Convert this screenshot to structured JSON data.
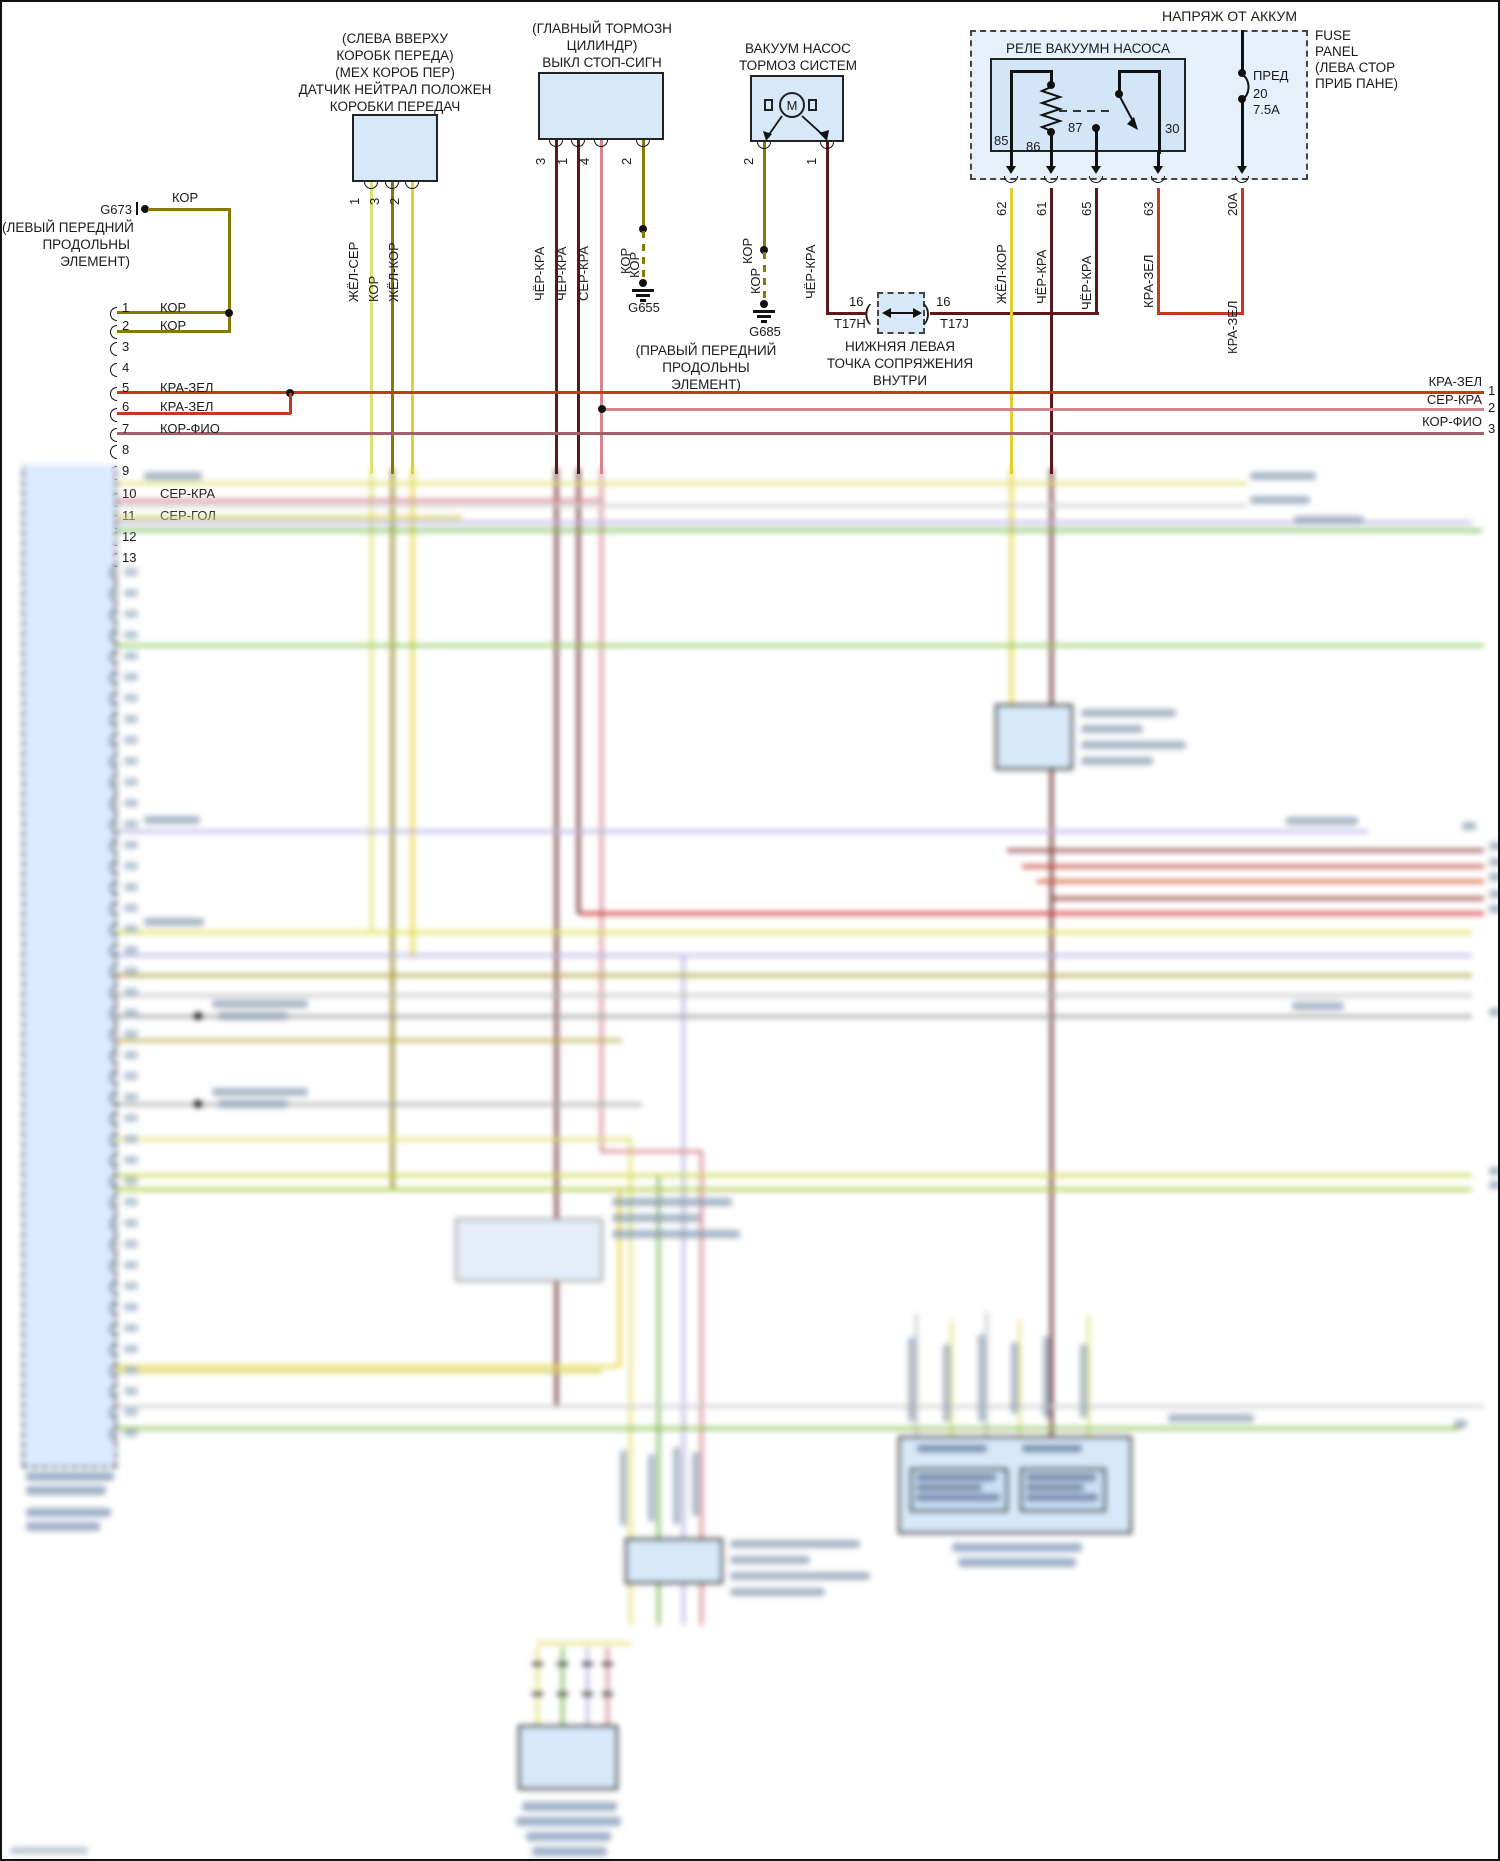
{
  "power": {
    "feed_label": "НАПРЯЖ ОТ АККУМ",
    "fuse_panel_caption": [
      "FUSE",
      "PANEL",
      "(ЛЕВА СТОР",
      "ПРИБ ПАНЕ)"
    ],
    "fuse": {
      "label": "ПРЕД",
      "number": "20",
      "rating": "7.5А"
    }
  },
  "relay": {
    "title": "РЕЛЕ ВАКУУМН НАСОСА",
    "pin85": "85",
    "pin86": "86",
    "pin87": "87",
    "pin30": "30",
    "outputs": [
      {
        "circuit": "62",
        "wire": "ЖЁЛ-КОР"
      },
      {
        "circuit": "61",
        "wire": "ЧЁР-КРА"
      },
      {
        "circuit": "65",
        "wire": "ЧЁР-КРА"
      },
      {
        "circuit": "63",
        "wire": "КРА-ЗЕЛ"
      },
      {
        "circuit": "20А",
        "wire": "КРА-ЗЕЛ"
      }
    ]
  },
  "vacuum_pump": {
    "caption": [
      "ВАКУУМ НАСОС",
      "ТОРМОЗ СИСТЕМ"
    ],
    "motor_letter": "M",
    "pins": [
      {
        "n": "2",
        "wire": "КОР"
      },
      {
        "n": "1",
        "wire": "ЧЁР-КРА"
      }
    ]
  },
  "stop_switch": {
    "caption": [
      "(ГЛАВНЫЙ ТОРМОЗН",
      "ЦИЛИНДР)",
      "ВЫКЛ СТОП-СИГН"
    ],
    "pins": [
      {
        "n": "3",
        "wire": "ЧЁР-КРА"
      },
      {
        "n": "1",
        "wire": "ЧЁР-КРА"
      },
      {
        "n": "4",
        "wire": "СЕР-КРА"
      },
      {
        "n": "2",
        "wire": "КОР"
      }
    ]
  },
  "neutral_sensor": {
    "caption": [
      "(СЛЕВА ВВЕРХУ",
      "КОРОБК ПЕРЕДА)",
      "(МЕХ КОРОБ ПЕР)",
      "ДАТЧИК НЕЙТРАЛ ПОЛОЖЕН",
      "КОРОБКИ ПЕРЕДАЧ"
    ],
    "pins": [
      {
        "n": "1",
        "wire": "ЖЁЛ-СЕР"
      },
      {
        "n": "3",
        "wire": "КОР"
      },
      {
        "n": "2",
        "wire": "ЖЁЛ-КОР"
      }
    ]
  },
  "ground_g673": {
    "id": "G673",
    "wire": "КОР",
    "caption": [
      "(ЛЕВЫЙ ПЕРЕДНИЙ",
      "ПРОДОЛЬНЫ",
      "ЭЛЕМЕНТ)"
    ]
  },
  "ground_g655": {
    "id": "G655",
    "wire": "КОР"
  },
  "ground_g685": {
    "id": "G685",
    "wire": "КОР",
    "caption": [
      "(ПРАВЫЙ ПЕРЕДНИЙ",
      "ПРОДОЛЬНЫ",
      "ЭЛЕМЕНТ)"
    ]
  },
  "t17": {
    "left_num": "16",
    "left_id": "T17H",
    "right_num": "16",
    "right_id": "T17J",
    "caption": [
      "НИЖНЯЯ ЛЕВАЯ",
      "ТОЧКА СОПРЯЖЕНИЯ",
      "ВНУТРИ"
    ]
  },
  "left_connector": {
    "pins": [
      {
        "n": "1",
        "label": "КОР"
      },
      {
        "n": "2",
        "label": "КОР"
      },
      {
        "n": "3",
        "label": ""
      },
      {
        "n": "4",
        "label": ""
      },
      {
        "n": "5",
        "label": "КРА-ЗЕЛ"
      },
      {
        "n": "6",
        "label": "КРА-ЗЕЛ"
      },
      {
        "n": "7",
        "label": "КОР-ФИО"
      },
      {
        "n": "8",
        "label": ""
      },
      {
        "n": "9",
        "label": ""
      },
      {
        "n": "10",
        "label": "СЕР-КРА"
      },
      {
        "n": "11",
        "label": "СЕР-ГОЛ"
      },
      {
        "n": "12",
        "label": ""
      },
      {
        "n": "13",
        "label": ""
      }
    ]
  },
  "right_exits": [
    {
      "wire": "КРА-ЗЕЛ",
      "circuit": "1"
    },
    {
      "wire": "СЕР-КРА",
      "circuit": "2"
    },
    {
      "wire": "КОР-ФИО",
      "circuit": "3"
    }
  ],
  "colors": {
    "kor": "#867a06",
    "zhel_ser": "#e0e072",
    "zhel_kor": "#e5cf2e",
    "chyor_kra": "#5d1919",
    "ser_kra": "#d4848c",
    "kra_zel": "#c43a1a",
    "kor_fio": "#a2606c",
    "ser_gol": "#b9b3e0",
    "box_fill": "#d7e9f8",
    "panel_fill": "#e6f0fa"
  }
}
